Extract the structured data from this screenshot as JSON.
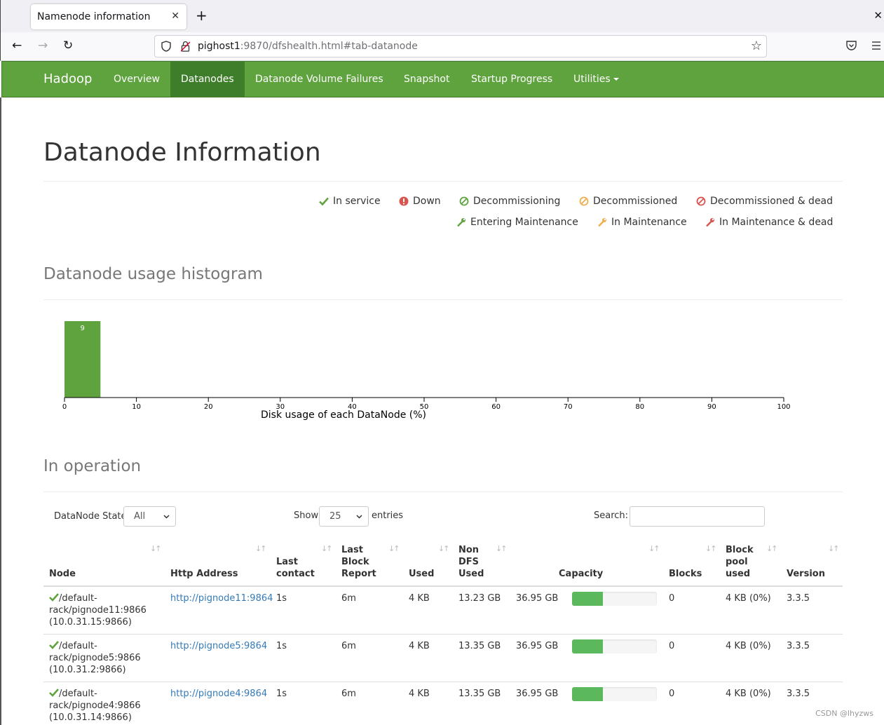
{
  "browser": {
    "tab_title": "Namenode information",
    "url_host": "pighost1",
    "url_rest": ":9870/dfshealth.html#tab-datanode"
  },
  "hadoop_nav": {
    "brand": "Hadoop",
    "items": [
      "Overview",
      "Datanodes",
      "Datanode Volume Failures",
      "Snapshot",
      "Startup Progress",
      "Utilities"
    ],
    "active": "Datanodes"
  },
  "page_title": "Datanode Information",
  "legend": [
    {
      "label": "In service",
      "icon": "check-icon",
      "color": "#5fa33e"
    },
    {
      "label": "Down",
      "icon": "exclamation-circle-icon",
      "color": "#d9534f"
    },
    {
      "label": "Decommissioning",
      "icon": "ban-icon",
      "color": "#5fa33e"
    },
    {
      "label": "Decommissioned",
      "icon": "ban-icon",
      "color": "#f0ad4e"
    },
    {
      "label": "Decommissioned & dead",
      "icon": "ban-icon",
      "color": "#d9534f"
    },
    {
      "label": "Entering Maintenance",
      "icon": "wrench-icon",
      "color": "#5fa33e"
    },
    {
      "label": "In Maintenance",
      "icon": "wrench-icon",
      "color": "#f0ad4e"
    },
    {
      "label": "In Maintenance & dead",
      "icon": "wrench-icon",
      "color": "#d9534f"
    }
  ],
  "histogram_title": "Datanode usage histogram",
  "chart_data": {
    "type": "bar",
    "xlabel": "Disk usage of each DataNode (%)",
    "xlim": [
      0,
      100
    ],
    "xticks": [
      0,
      10,
      20,
      30,
      40,
      50,
      60,
      70,
      80,
      90,
      100
    ],
    "bins": [
      {
        "from": 0,
        "to": 5,
        "count": 9
      }
    ],
    "color": "#5fa33e"
  },
  "operation_title": "In operation",
  "controls": {
    "state_label": "DataNode State",
    "state_value": "All",
    "show_label": "Show",
    "show_value": "25",
    "entries_label": "entries",
    "search_label": "Search:"
  },
  "table": {
    "headers": [
      "Node",
      "Http Address",
      "Last contact",
      "Last Block Report",
      "Used",
      "Non DFS Used",
      "Capacity",
      "Blocks",
      "Block pool used",
      "Version"
    ],
    "rows": [
      {
        "node1": "/default-",
        "node2": "rack/pignode11:9866",
        "node3": "(10.0.31.15:9866)",
        "http": "http://pignode11:9864",
        "contact": "1s",
        "report": "6m",
        "used": "4 KB",
        "nondfs": "13.23 GB",
        "capacity": "36.95 GB",
        "usage_fraction": 0.36,
        "blocks": "0",
        "pool": "4 KB (0%)",
        "version": "3.3.5"
      },
      {
        "node1": "/default-",
        "node2": "rack/pignode5:9866",
        "node3": "(10.0.31.2:9866)",
        "http": "http://pignode5:9864",
        "contact": "1s",
        "report": "6m",
        "used": "4 KB",
        "nondfs": "13.35 GB",
        "capacity": "36.95 GB",
        "usage_fraction": 0.36,
        "blocks": "0",
        "pool": "4 KB (0%)",
        "version": "3.3.5"
      },
      {
        "node1": "/default-",
        "node2": "rack/pignode4:9866",
        "node3": "(10.0.31.14:9866)",
        "http": "http://pignode4:9864",
        "contact": "1s",
        "report": "6m",
        "used": "4 KB",
        "nondfs": "13.35 GB",
        "capacity": "36.95 GB",
        "usage_fraction": 0.36,
        "blocks": "0",
        "pool": "4 KB (0%)",
        "version": "3.3.5"
      }
    ]
  },
  "watermark": "CSDN @lhyzws"
}
